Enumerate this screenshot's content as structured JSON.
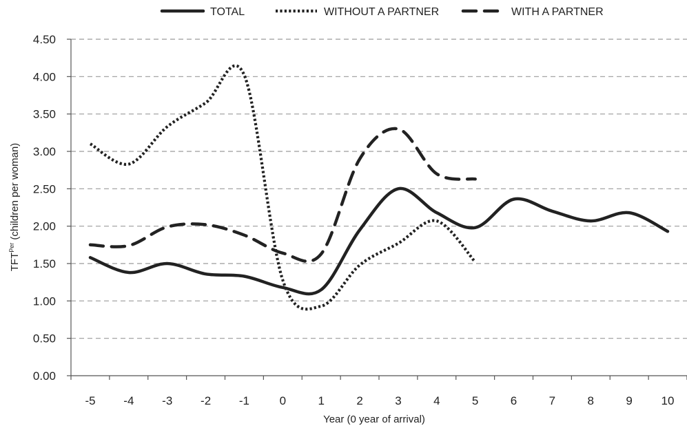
{
  "chart_data": {
    "type": "line",
    "title": "",
    "xlabel": "Year (0 year of arrival)",
    "ylabel_main": "TFT",
    "ylabel_sup": "Per",
    "ylabel_rest": " (children per woman)",
    "ylim": [
      0,
      4.5
    ],
    "xlim": [
      -5,
      10
    ],
    "yticks": [
      0,
      0.5,
      1.0,
      1.5,
      2.0,
      2.5,
      3.0,
      3.5,
      4.0,
      4.5
    ],
    "ytick_labels": [
      "0.00",
      "0.50",
      "1.00",
      "1.50",
      "2.00",
      "2.50",
      "3.00",
      "3.50",
      "4.00",
      "4.50"
    ],
    "xticks": [
      -5,
      -4,
      -3,
      -2,
      -1,
      0,
      1,
      2,
      3,
      4,
      5,
      6,
      7,
      8,
      9,
      10
    ],
    "xtick_labels": [
      "-5",
      "-4",
      "-3",
      "-2",
      "-1",
      "0",
      "1",
      "2",
      "3",
      "4",
      "5",
      "6",
      "7",
      "8",
      "9",
      "10"
    ],
    "grid": "horizontal dashed",
    "legend_position": "top",
    "series": [
      {
        "name": "TOTAL",
        "style": "solid",
        "color": "#222222",
        "x": [
          -5,
          -4,
          -3,
          -2,
          -1,
          0,
          1,
          2,
          3,
          4,
          5,
          6,
          7,
          8,
          9,
          10
        ],
        "values": [
          1.58,
          1.38,
          1.5,
          1.36,
          1.33,
          1.18,
          1.15,
          1.95,
          2.5,
          2.18,
          1.98,
          2.36,
          2.2,
          2.07,
          2.18,
          1.93
        ]
      },
      {
        "name": "WITHOUT A PARTNER",
        "style": "dotted",
        "color": "#222222",
        "x": [
          -5,
          -4,
          -3,
          -2,
          -1,
          0,
          1,
          2,
          3,
          4,
          5
        ],
        "values": [
          3.1,
          2.83,
          3.33,
          3.65,
          4.02,
          1.28,
          0.93,
          1.48,
          1.77,
          2.07,
          1.52
        ]
      },
      {
        "name": "WITH A PARTNER",
        "style": "dashed",
        "color": "#222222",
        "x": [
          -5,
          -4,
          -3,
          -2,
          -1,
          0,
          1,
          2,
          3,
          4,
          5
        ],
        "values": [
          1.75,
          1.74,
          1.99,
          2.02,
          1.88,
          1.64,
          1.63,
          2.9,
          3.3,
          2.7,
          2.63
        ]
      }
    ]
  }
}
